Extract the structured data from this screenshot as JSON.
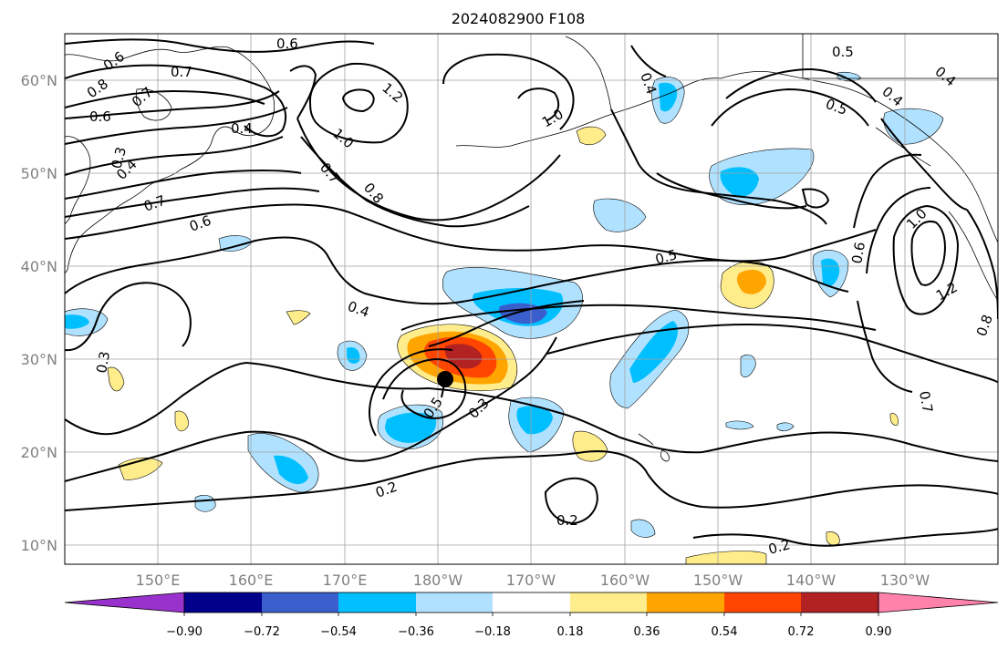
{
  "title": "2024082900 F108",
  "lat_labels": [
    "60°N",
    "50°N",
    "40°N",
    "30°N",
    "20°N",
    "10°N"
  ],
  "lon_labels": [
    "150°E",
    "160°E",
    "170°E",
    "180°W",
    "170°W",
    "160°W",
    "150°W",
    "140°W",
    "130°W"
  ],
  "colorbar": {
    "colors": [
      "#9932cc",
      "#00008b",
      "#3a5fcd",
      "#00bfff",
      "#b0e2ff",
      "#ffffff",
      "#ffec8b",
      "#ffa500",
      "#ff4500",
      "#b22222",
      "#ff82ab"
    ],
    "tick_labels": [
      "−0.90",
      "−0.72",
      "−0.54",
      "−0.36",
      "−0.18",
      "0.18",
      "0.36",
      "0.54",
      "0.72",
      "0.90"
    ]
  },
  "contour_labels": [
    "0.6",
    "0.7",
    "0.8",
    "0.6",
    "0.7",
    "0.4",
    "0.3",
    "0.4",
    "0.7",
    "0.6",
    "0.6",
    "1.2",
    "1.0",
    "0.7",
    "0.8",
    "1.0",
    "0.4",
    "0.5",
    "0.4",
    "0.5",
    "0.4",
    "1.0",
    "1.2",
    "0.6",
    "0.8",
    "0.7",
    "0.5",
    "0.4",
    "0.3",
    "0.5",
    "0.3",
    "0.2",
    "0.2",
    "0.2"
  ],
  "colors": {
    "grid": "#a0a0a0",
    "axis_text": "#808080",
    "contour": "#000000",
    "marker": "#000000"
  }
}
